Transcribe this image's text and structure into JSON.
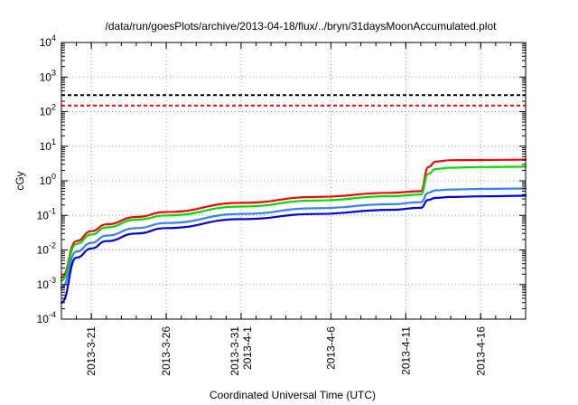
{
  "chart_data": {
    "type": "line",
    "title": "/data/run/goesPlots/archive/2013-04-18/flux/../bryn/31daysMoonAccumulated.plot",
    "xlabel": "Coordinated Universal Time (UTC)",
    "ylabel": "cGy",
    "y_scale": "log",
    "ylim": [
      0.0001,
      10000
    ],
    "xlim": [
      "2013-03-19",
      "2013-04-19"
    ],
    "grid": true,
    "y_ticks": [
      {
        "mant": "10",
        "exp": "-4",
        "value": 0.0001
      },
      {
        "mant": "10",
        "exp": "-3",
        "value": 0.001
      },
      {
        "mant": "10",
        "exp": "-2",
        "value": 0.01
      },
      {
        "mant": "10",
        "exp": "-1",
        "value": 0.1
      },
      {
        "mant": "10",
        "exp": "0",
        "value": 1
      },
      {
        "mant": "10",
        "exp": "1",
        "value": 10
      },
      {
        "mant": "10",
        "exp": "2",
        "value": 100
      },
      {
        "mant": "10",
        "exp": "3",
        "value": 1000
      },
      {
        "mant": "10",
        "exp": "4",
        "value": 10000
      }
    ],
    "x_ticks": [
      {
        "date": "2013-03-21",
        "labels": [
          "2013-3-21"
        ]
      },
      {
        "date": "2013-03-26",
        "labels": [
          "2013-3-26"
        ]
      },
      {
        "date": "2013-03-31",
        "labels": [
          "2013-3-31",
          "2013-4-1"
        ]
      },
      {
        "date": "2013-04-06",
        "labels": [
          "2013-4-6"
        ]
      },
      {
        "date": "2013-04-11",
        "labels": [
          "2013-4-11"
        ]
      },
      {
        "date": "2013-04-16",
        "labels": [
          "2013-4-16"
        ]
      }
    ],
    "thresholds": [
      {
        "value": 300,
        "color": "#000000"
      },
      {
        "value": 150,
        "color": "#ff0000"
      }
    ],
    "series": [
      {
        "color": "#ff0000",
        "x": [
          "2013-03-19",
          "2013-03-20",
          "2013-03-21",
          "2013-03-22",
          "2013-03-24",
          "2013-03-26",
          "2013-03-31",
          "2013-04-05",
          "2013-04-10",
          "2013-04-12",
          "2013-04-12T12:00",
          "2013-04-13",
          "2013-04-14",
          "2013-04-16",
          "2013-04-19"
        ],
        "values": [
          0.0016,
          0.018,
          0.035,
          0.055,
          0.09,
          0.125,
          0.23,
          0.34,
          0.45,
          0.5,
          2.5,
          3.6,
          3.95,
          4.0,
          4.1
        ]
      },
      {
        "color": "#00dd00",
        "x": [
          "2013-03-19",
          "2013-03-20",
          "2013-03-21",
          "2013-03-22",
          "2013-03-24",
          "2013-03-26",
          "2013-03-31",
          "2013-04-05",
          "2013-04-10",
          "2013-04-12",
          "2013-04-12T12:00",
          "2013-04-13",
          "2013-04-14",
          "2013-04-16",
          "2013-04-19"
        ],
        "values": [
          0.0013,
          0.015,
          0.028,
          0.045,
          0.075,
          0.1,
          0.18,
          0.27,
          0.36,
          0.4,
          1.6,
          2.2,
          2.4,
          2.5,
          2.55
        ]
      },
      {
        "color": "#3080ff",
        "x": [
          "2013-03-19",
          "2013-03-20",
          "2013-03-21",
          "2013-03-22",
          "2013-03-24",
          "2013-03-26",
          "2013-03-31",
          "2013-04-05",
          "2013-04-10",
          "2013-04-12",
          "2013-04-12T12:00",
          "2013-04-13",
          "2013-04-14",
          "2013-04-16",
          "2013-04-19"
        ],
        "values": [
          0.0008,
          0.009,
          0.016,
          0.026,
          0.043,
          0.06,
          0.11,
          0.16,
          0.21,
          0.24,
          0.45,
          0.53,
          0.56,
          0.58,
          0.6
        ]
      },
      {
        "color": "#0000ee",
        "x": [
          "2013-03-19",
          "2013-03-20",
          "2013-03-21",
          "2013-03-22",
          "2013-03-24",
          "2013-03-26",
          "2013-03-31",
          "2013-04-05",
          "2013-04-10",
          "2013-04-12",
          "2013-04-12T12:00",
          "2013-04-13",
          "2013-04-14",
          "2013-04-16",
          "2013-04-19"
        ],
        "values": [
          0.0003,
          0.006,
          0.011,
          0.018,
          0.03,
          0.043,
          0.078,
          0.11,
          0.145,
          0.165,
          0.28,
          0.32,
          0.34,
          0.355,
          0.37
        ]
      }
    ]
  }
}
